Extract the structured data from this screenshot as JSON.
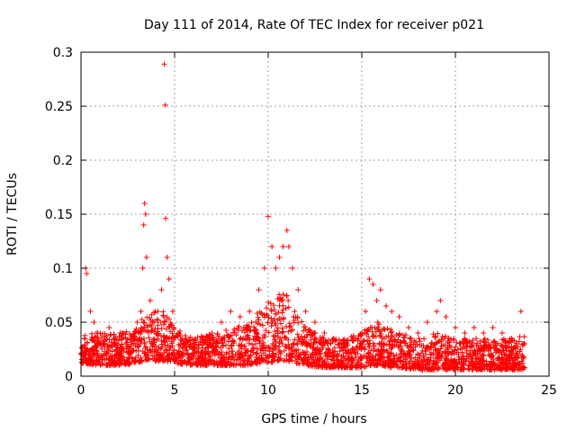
{
  "chart_data": {
    "type": "scatter",
    "title": "Day 111 of 2014, Rate Of TEC Index for receiver p021",
    "xlabel": "GPS time / hours",
    "ylabel": "ROTI / TECUs",
    "xlim": [
      0,
      25
    ],
    "ylim": [
      0,
      0.3
    ],
    "xticks": [
      0,
      5,
      10,
      15,
      20,
      25
    ],
    "xtick_labels": [
      "0",
      "5",
      "10",
      "15",
      "20",
      "25"
    ],
    "yticks": [
      0,
      0.05,
      0.1,
      0.15,
      0.2,
      0.25,
      0.3
    ],
    "ytick_labels": [
      "0",
      "0.05",
      "0.1",
      "0.15",
      "0.2",
      "0.25",
      "0.3"
    ],
    "grid": true,
    "marker": "+",
    "series": [
      {
        "name": "ROTI",
        "color": "#ff0000",
        "points": [
          [
            0.1,
            0.02
          ],
          [
            0.2,
            0.035
          ],
          [
            0.25,
            0.1
          ],
          [
            0.3,
            0.095
          ],
          [
            0.5,
            0.06
          ],
          [
            0.7,
            0.05
          ],
          [
            0.9,
            0.04
          ],
          [
            1.2,
            0.03
          ],
          [
            1.5,
            0.045
          ],
          [
            1.8,
            0.03
          ],
          [
            2.1,
            0.04
          ],
          [
            2.4,
            0.03
          ],
          [
            2.8,
            0.035
          ],
          [
            3.0,
            0.05
          ],
          [
            3.2,
            0.06
          ],
          [
            3.3,
            0.1
          ],
          [
            3.35,
            0.14
          ],
          [
            3.4,
            0.16
          ],
          [
            3.45,
            0.15
          ],
          [
            3.5,
            0.11
          ],
          [
            3.7,
            0.07
          ],
          [
            3.9,
            0.05
          ],
          [
            4.1,
            0.06
          ],
          [
            4.3,
            0.08
          ],
          [
            4.45,
            0.289
          ],
          [
            4.5,
            0.251
          ],
          [
            4.52,
            0.146
          ],
          [
            4.6,
            0.11
          ],
          [
            4.7,
            0.09
          ],
          [
            4.9,
            0.06
          ],
          [
            5.2,
            0.04
          ],
          [
            5.6,
            0.035
          ],
          [
            6.0,
            0.03
          ],
          [
            6.5,
            0.035
          ],
          [
            7.0,
            0.04
          ],
          [
            7.5,
            0.05
          ],
          [
            8.0,
            0.06
          ],
          [
            8.5,
            0.055
          ],
          [
            9.0,
            0.06
          ],
          [
            9.5,
            0.08
          ],
          [
            9.8,
            0.1
          ],
          [
            10.0,
            0.148
          ],
          [
            10.2,
            0.12
          ],
          [
            10.4,
            0.1
          ],
          [
            10.6,
            0.11
          ],
          [
            10.8,
            0.12
          ],
          [
            11.0,
            0.135
          ],
          [
            11.1,
            0.12
          ],
          [
            11.3,
            0.1
          ],
          [
            11.6,
            0.08
          ],
          [
            12.0,
            0.06
          ],
          [
            12.5,
            0.05
          ],
          [
            13.0,
            0.04
          ],
          [
            13.5,
            0.035
          ],
          [
            14.0,
            0.03
          ],
          [
            14.5,
            0.035
          ],
          [
            15.0,
            0.04
          ],
          [
            15.2,
            0.06
          ],
          [
            15.4,
            0.09
          ],
          [
            15.6,
            0.085
          ],
          [
            15.8,
            0.07
          ],
          [
            16.0,
            0.08
          ],
          [
            16.3,
            0.065
          ],
          [
            16.6,
            0.06
          ],
          [
            17.0,
            0.055
          ],
          [
            17.5,
            0.045
          ],
          [
            18.0,
            0.04
          ],
          [
            18.5,
            0.05
          ],
          [
            19.0,
            0.06
          ],
          [
            19.2,
            0.07
          ],
          [
            19.5,
            0.055
          ],
          [
            20.0,
            0.045
          ],
          [
            20.5,
            0.04
          ],
          [
            21.0,
            0.045
          ],
          [
            21.5,
            0.04
          ],
          [
            22.0,
            0.045
          ],
          [
            22.5,
            0.04
          ],
          [
            23.0,
            0.035
          ],
          [
            23.5,
            0.06
          ],
          [
            23.7,
            0.03
          ]
        ],
        "envelope": {
          "x": [
            0,
            1,
            2,
            3,
            3.5,
            4,
            4.5,
            5,
            6,
            7,
            8,
            9,
            9.5,
            10,
            10.5,
            11,
            11.5,
            12,
            13,
            14,
            15,
            15.5,
            16,
            16.5,
            17,
            18,
            19,
            20,
            21,
            22,
            23,
            23.7
          ],
          "low": [
            0.012,
            0.01,
            0.01,
            0.012,
            0.015,
            0.014,
            0.014,
            0.012,
            0.01,
            0.01,
            0.01,
            0.01,
            0.012,
            0.012,
            0.014,
            0.014,
            0.012,
            0.01,
            0.008,
            0.008,
            0.008,
            0.01,
            0.01,
            0.008,
            0.008,
            0.006,
            0.006,
            0.006,
            0.006,
            0.006,
            0.006,
            0.006
          ],
          "high": [
            0.04,
            0.04,
            0.04,
            0.045,
            0.06,
            0.06,
            0.06,
            0.045,
            0.035,
            0.04,
            0.045,
            0.05,
            0.06,
            0.07,
            0.075,
            0.08,
            0.06,
            0.045,
            0.035,
            0.035,
            0.04,
            0.05,
            0.05,
            0.045,
            0.04,
            0.035,
            0.04,
            0.035,
            0.035,
            0.035,
            0.035,
            0.04
          ]
        }
      }
    ]
  }
}
